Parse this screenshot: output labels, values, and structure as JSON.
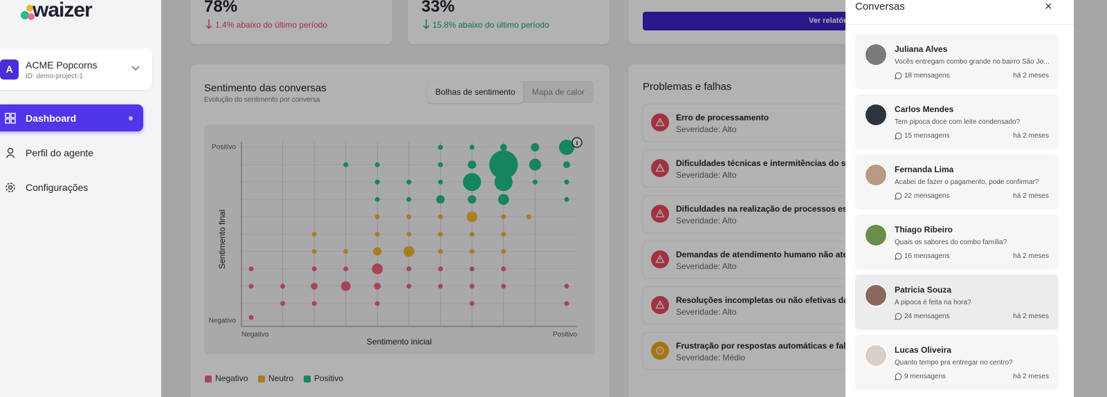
{
  "sidebar": {
    "logo": "waizer",
    "project": {
      "initial": "A",
      "name": "ACME Popcorns",
      "id": "ID: demo-project-1"
    },
    "nav": [
      "Dashboard",
      "Perfil do agente",
      "Configurações"
    ]
  },
  "stats": [
    {
      "value": "78%",
      "change": "1.4% abaixo do último período"
    },
    {
      "value": "33%",
      "change": "15.8% abaixo do último período"
    }
  ],
  "report_button": "Ver relatório",
  "sentiment_toggle": [
    "Bolhas de sentimento",
    "Mapa de calor"
  ],
  "chart_data": {
    "type": "bubble",
    "title": "Sentimento das conversas",
    "subtitle": "Evolução do sentimento por conversa",
    "x_label": "Sentimento inicial",
    "y_label": "Sentimento final",
    "xlim": [
      -1,
      1
    ],
    "ylim": [
      -1,
      1
    ],
    "xticks": [
      {
        "value": -1,
        "label": "Negativo"
      },
      {
        "value": 1,
        "label": "Positivo"
      }
    ],
    "yticks": [
      {
        "value": -1,
        "label": "Negativo"
      },
      {
        "value": 1,
        "label": "Positivo"
      }
    ],
    "series": [
      {
        "name": "Negativo",
        "color": "#f0637a",
        "x": [
          -1,
          -0.6,
          -0.4,
          -0.2,
          0,
          0.2,
          0.4,
          0.6,
          -1,
          -0.8,
          -0.6,
          -0.4,
          -0.2,
          0,
          0.2,
          0.4,
          0.6,
          1,
          -0.8,
          -0.6,
          -0.2,
          0.4,
          1,
          -1
        ],
        "y": [
          -0.4,
          -0.4,
          -0.4,
          -0.4,
          -0.4,
          -0.4,
          -0.4,
          -0.4,
          -0.6,
          -0.6,
          -0.6,
          -0.6,
          -0.6,
          -0.6,
          -0.6,
          -0.6,
          -0.6,
          -0.6,
          -0.8,
          -0.8,
          -0.8,
          -0.8,
          -0.8,
          -0.96
        ],
        "sizes": [
          1,
          1,
          1,
          5,
          1,
          1,
          1,
          1,
          1,
          1,
          2,
          4,
          2,
          1,
          1,
          1,
          1,
          1,
          1,
          1,
          1,
          1,
          1,
          1
        ]
      },
      {
        "name": "Neutro",
        "color": "#f2b530",
        "x": [
          -0.2,
          0,
          0.2,
          0.4,
          0.6,
          0.76,
          -0.6,
          -0.2,
          0,
          0.2,
          0.4,
          0.6,
          -0.6,
          -0.4,
          -0.2,
          0,
          0.2,
          0.4,
          0.6
        ],
        "y": [
          0.2,
          0.2,
          0.2,
          0.2,
          0.2,
          0.2,
          0,
          0,
          0,
          0,
          0,
          0,
          -0.2,
          -0.2,
          -0.2,
          -0.2,
          -0.2,
          -0.2,
          -0.2
        ],
        "sizes": [
          1,
          1,
          1,
          5,
          1,
          1,
          1,
          1,
          1,
          1,
          1,
          1,
          1,
          1,
          3,
          5,
          1,
          1,
          1
        ]
      },
      {
        "name": "Positivo",
        "color": "#1fbf86",
        "x": [
          0.2,
          0.4,
          0.6,
          0.8,
          1,
          -0.4,
          -0.2,
          0.2,
          0.4,
          0.6,
          0.8,
          1,
          -0.2,
          0,
          0.2,
          0.4,
          0.6,
          0.8,
          1,
          -0.2,
          0,
          0.2,
          0.4,
          0.6,
          1
        ],
        "y": [
          1,
          1,
          1,
          1,
          1,
          0.8,
          0.8,
          0.8,
          0.8,
          0.8,
          0.8,
          0.8,
          0.6,
          0.6,
          0.6,
          0.6,
          0.6,
          0.6,
          0.6,
          0.4,
          0.4,
          0.4,
          0.4,
          0.4,
          0.4
        ],
        "sizes": [
          1,
          1,
          2,
          3,
          10,
          1,
          1,
          1,
          3,
          35,
          6,
          2,
          1,
          1,
          1,
          14,
          14,
          1,
          1,
          1,
          1,
          3,
          3,
          5,
          1
        ]
      }
    ]
  },
  "problems": {
    "title": "Problemas e falhas",
    "items": [
      {
        "title": "Erro de processamento",
        "severity": "Severidade: Alto"
      },
      {
        "title": "Dificuldades técnicas e intermitências do sistema",
        "severity": "Severidade: Alto"
      },
      {
        "title": "Dificuldades na realização de processos específicos",
        "severity": "Severidade: Alto"
      },
      {
        "title": "Demandas de atendimento humano não atendidas",
        "severity": "Severidade: Alto"
      },
      {
        "title": "Resoluções incompletas ou não efetivas das solicitações",
        "severity": "Severidade: Alto"
      },
      {
        "title": "Frustração por respostas automáticas e falhas na",
        "severity": "Severidade: Médio"
      }
    ]
  },
  "drawer": {
    "title": "Conversas",
    "close": "×",
    "conversations": [
      {
        "name": "Juliana Alves",
        "message": "Vocês entregam combo grande no bairro São Jo...",
        "count": "18 mensagens",
        "time": "há 2 meses"
      },
      {
        "name": "Carlos Mendes",
        "message": "Tem pipoca doce com leite condensado?",
        "count": "15 mensagens",
        "time": "há 2 meses"
      },
      {
        "name": "Fernanda Lima",
        "message": "Acabei de fazer o pagamento, pode confirmar?",
        "count": "22 mensagens",
        "time": "há 2 meses"
      },
      {
        "name": "Thiago Ribeiro",
        "message": "Quais os sabores do combo família?",
        "count": "16 mensagens",
        "time": "há 2 meses"
      },
      {
        "name": "Patricia Souza",
        "message": "A pipoca é feita na hora?",
        "count": "24 mensagens",
        "time": "há 2 meses"
      },
      {
        "name": "Lucas Oliveira",
        "message": "Quanto tempo pra entregar no centro?",
        "count": "9 mensagens",
        "time": "há 2 meses"
      }
    ]
  }
}
